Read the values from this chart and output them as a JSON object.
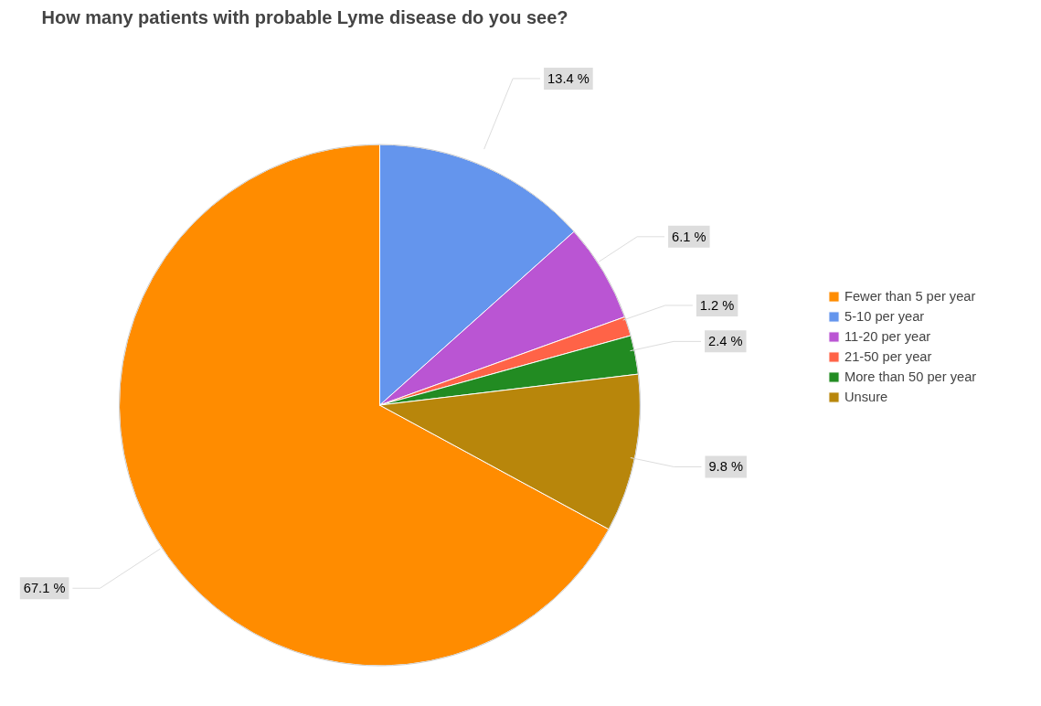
{
  "chart_data": {
    "type": "pie",
    "title": "How many patients with probable Lyme disease do you see?",
    "categories": [
      "Fewer than 5 per year",
      "5-10 per year",
      "11-20 per year",
      "21-50 per year",
      "More than 50 per year",
      "Unsure"
    ],
    "values": [
      67.1,
      13.4,
      6.1,
      1.2,
      2.4,
      9.8
    ],
    "colors": [
      "#ff8c00",
      "#6495ed",
      "#ba55d3",
      "#ff6347",
      "#228b22",
      "#b8860b"
    ],
    "value_labels": [
      "67.1 %",
      "13.4 %",
      "6.1 %",
      "1.2 %",
      "2.4 %",
      "9.8 %"
    ],
    "legend": "right"
  }
}
